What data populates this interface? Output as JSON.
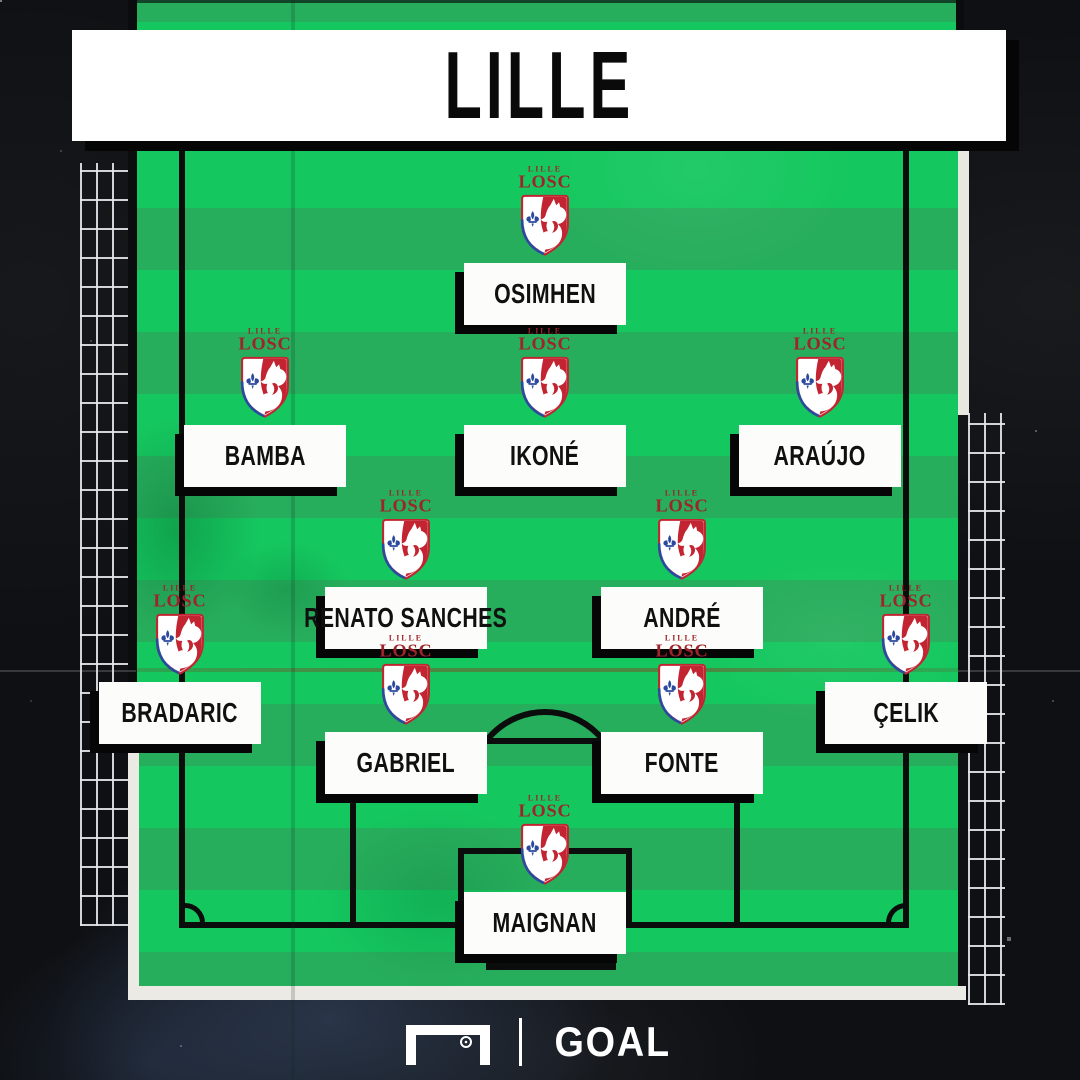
{
  "header": {
    "title": "LILLE"
  },
  "crest": {
    "small_text": "LILLE",
    "main_text": "LOSC"
  },
  "formation_rows": [
    [
      "OSIMHEN"
    ],
    [
      "BAMBA",
      "IKONÉ",
      "ARAÚJO"
    ],
    [
      "RENATO SANCHES",
      "ANDRÉ"
    ],
    [
      "BRADARIC",
      "ÇELIK"
    ],
    [
      "GABRIEL",
      "FONTE"
    ],
    [
      "MAIGNAN"
    ]
  ],
  "players": [
    {
      "slot": "st",
      "name": "OSIMHEN"
    },
    {
      "slot": "lw",
      "name": "BAMBA"
    },
    {
      "slot": "cam",
      "name": "IKONÉ"
    },
    {
      "slot": "rw",
      "name": "ARAÚJO"
    },
    {
      "slot": "lcm",
      "name": "RENATO SANCHES"
    },
    {
      "slot": "rcm",
      "name": "ANDRÉ"
    },
    {
      "slot": "lb",
      "name": "BRADARIC"
    },
    {
      "slot": "rb",
      "name": "ÇELIK"
    },
    {
      "slot": "lcb",
      "name": "GABRIEL"
    },
    {
      "slot": "rcb",
      "name": "FONTE"
    },
    {
      "slot": "gk",
      "name": "MAIGNAN"
    }
  ],
  "footer": {
    "brand": "GOAL"
  },
  "colors": {
    "pitch_light": "#15c75f",
    "pitch_dark": "#27ae5c",
    "line_black": "#0b0c0c",
    "crest_red": "#c22431",
    "crest_text_red": "#9f232a",
    "crest_blue": "#2b4a9e",
    "banner_bg": "#ffffff",
    "background": "#0e1013"
  }
}
